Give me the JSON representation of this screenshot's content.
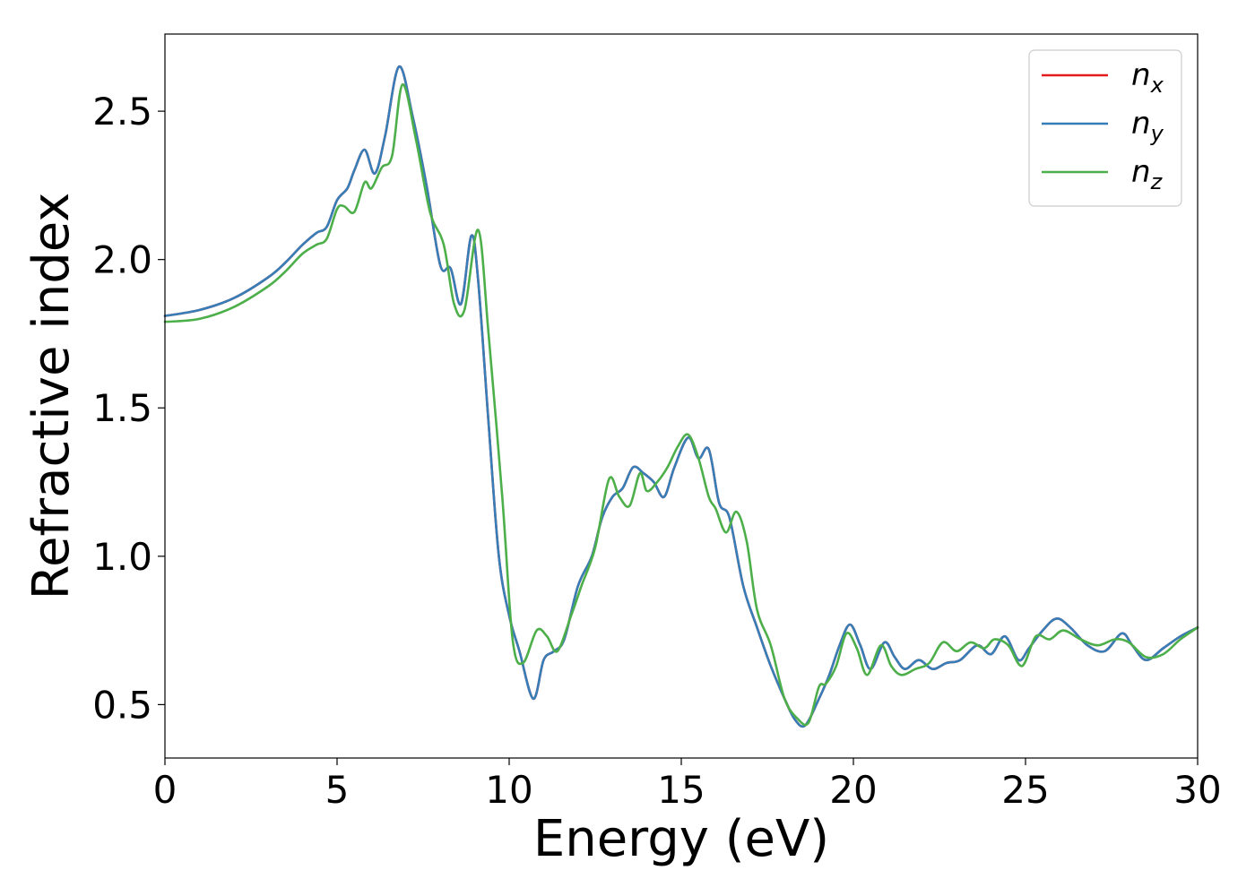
{
  "chart_data": {
    "type": "line",
    "xlabel": "Energy (eV)",
    "ylabel": "Refractive index",
    "xlim": [
      0,
      30
    ],
    "ylim": [
      0.32,
      2.76
    ],
    "xticks": [
      0,
      5,
      10,
      15,
      20,
      25,
      30
    ],
    "xtick_labels": [
      "0",
      "5",
      "10",
      "15",
      "20",
      "25",
      "30"
    ],
    "yticks": [
      0.5,
      1.0,
      1.5,
      2.0,
      2.5
    ],
    "ytick_labels": [
      "0.5",
      "1.0",
      "1.5",
      "2.0",
      "2.5"
    ],
    "grid": false,
    "legend_position": "top-right",
    "series": [
      {
        "name": "n_x",
        "legend_main": "n",
        "legend_sub": "x",
        "color": "#e41a1c",
        "x": [
          0,
          1,
          2,
          3,
          3.5,
          4,
          4.4,
          4.7,
          5.0,
          5.3,
          5.5,
          5.8,
          6.1,
          6.4,
          6.8,
          7.2,
          7.6,
          8.0,
          8.3,
          8.6,
          8.9,
          9.1,
          9.4,
          9.7,
          10.0,
          10.3,
          10.7,
          11.0,
          11.3,
          11.6,
          12.0,
          12.4,
          12.7,
          13.0,
          13.3,
          13.6,
          13.9,
          14.2,
          14.5,
          14.8,
          15.2,
          15.5,
          15.8,
          16.1,
          16.4,
          16.8,
          17.2,
          17.6,
          18.0,
          18.3,
          18.6,
          19.0,
          19.3,
          19.6,
          19.9,
          20.2,
          20.5,
          20.9,
          21.2,
          21.5,
          21.9,
          22.3,
          22.7,
          23.1,
          23.6,
          24.0,
          24.4,
          24.8,
          25.1,
          25.5,
          25.9,
          26.3,
          26.8,
          27.3,
          27.8,
          28.1,
          28.5,
          29.0,
          29.5,
          30.0
        ],
        "y": [
          1.81,
          1.83,
          1.87,
          1.94,
          1.99,
          2.05,
          2.09,
          2.11,
          2.2,
          2.24,
          2.3,
          2.37,
          2.29,
          2.42,
          2.65,
          2.48,
          2.25,
          1.98,
          1.97,
          1.85,
          2.08,
          1.93,
          1.45,
          1.0,
          0.8,
          0.68,
          0.52,
          0.65,
          0.68,
          0.72,
          0.9,
          1.0,
          1.13,
          1.2,
          1.23,
          1.3,
          1.28,
          1.25,
          1.2,
          1.3,
          1.4,
          1.33,
          1.36,
          1.18,
          1.13,
          0.9,
          0.76,
          0.63,
          0.52,
          0.45,
          0.43,
          0.52,
          0.6,
          0.7,
          0.77,
          0.7,
          0.62,
          0.71,
          0.66,
          0.62,
          0.65,
          0.62,
          0.64,
          0.65,
          0.7,
          0.67,
          0.73,
          0.65,
          0.69,
          0.75,
          0.79,
          0.76,
          0.7,
          0.68,
          0.74,
          0.7,
          0.65,
          0.69,
          0.73,
          0.76
        ]
      },
      {
        "name": "n_y",
        "legend_main": "n",
        "legend_sub": "y",
        "color": "#377eb8",
        "x": [
          0,
          1,
          2,
          3,
          3.5,
          4,
          4.4,
          4.7,
          5.0,
          5.3,
          5.5,
          5.8,
          6.1,
          6.4,
          6.8,
          7.2,
          7.6,
          8.0,
          8.3,
          8.6,
          8.9,
          9.1,
          9.4,
          9.7,
          10.0,
          10.3,
          10.7,
          11.0,
          11.3,
          11.6,
          12.0,
          12.4,
          12.7,
          13.0,
          13.3,
          13.6,
          13.9,
          14.2,
          14.5,
          14.8,
          15.2,
          15.5,
          15.8,
          16.1,
          16.4,
          16.8,
          17.2,
          17.6,
          18.0,
          18.3,
          18.6,
          19.0,
          19.3,
          19.6,
          19.9,
          20.2,
          20.5,
          20.9,
          21.2,
          21.5,
          21.9,
          22.3,
          22.7,
          23.1,
          23.6,
          24.0,
          24.4,
          24.8,
          25.1,
          25.5,
          25.9,
          26.3,
          26.8,
          27.3,
          27.8,
          28.1,
          28.5,
          29.0,
          29.5,
          30.0
        ],
        "y": [
          1.81,
          1.83,
          1.87,
          1.94,
          1.99,
          2.05,
          2.09,
          2.11,
          2.2,
          2.24,
          2.3,
          2.37,
          2.29,
          2.42,
          2.65,
          2.48,
          2.25,
          1.98,
          1.97,
          1.85,
          2.08,
          1.93,
          1.45,
          1.0,
          0.8,
          0.68,
          0.52,
          0.65,
          0.68,
          0.72,
          0.9,
          1.0,
          1.13,
          1.2,
          1.23,
          1.3,
          1.28,
          1.25,
          1.2,
          1.3,
          1.4,
          1.33,
          1.36,
          1.18,
          1.13,
          0.9,
          0.76,
          0.63,
          0.52,
          0.45,
          0.43,
          0.52,
          0.6,
          0.7,
          0.77,
          0.7,
          0.62,
          0.71,
          0.66,
          0.62,
          0.65,
          0.62,
          0.64,
          0.65,
          0.7,
          0.67,
          0.73,
          0.65,
          0.69,
          0.75,
          0.79,
          0.76,
          0.7,
          0.68,
          0.74,
          0.7,
          0.65,
          0.69,
          0.73,
          0.76
        ]
      },
      {
        "name": "n_z",
        "legend_main": "n",
        "legend_sub": "z",
        "color": "#4daf4a",
        "x": [
          0,
          1,
          2,
          3,
          3.5,
          4,
          4.4,
          4.7,
          5.0,
          5.2,
          5.5,
          5.8,
          6.0,
          6.3,
          6.6,
          6.9,
          7.3,
          7.7,
          8.1,
          8.4,
          8.7,
          9.1,
          9.4,
          9.8,
          10.1,
          10.4,
          10.8,
          11.1,
          11.4,
          11.8,
          12.1,
          12.5,
          12.9,
          13.2,
          13.5,
          13.8,
          14.0,
          14.3,
          14.6,
          14.9,
          15.2,
          15.5,
          15.8,
          16.0,
          16.3,
          16.6,
          16.9,
          17.2,
          17.6,
          18.0,
          18.4,
          18.7,
          19.0,
          19.2,
          19.5,
          19.8,
          20.1,
          20.4,
          20.8,
          21.1,
          21.4,
          21.8,
          22.2,
          22.6,
          23.0,
          23.4,
          23.8,
          24.1,
          24.5,
          24.9,
          25.3,
          25.7,
          26.1,
          26.6,
          27.1,
          27.6,
          28.0,
          28.5,
          29.0,
          29.5,
          30.0
        ],
        "y": [
          1.79,
          1.8,
          1.84,
          1.91,
          1.96,
          2.02,
          2.05,
          2.07,
          2.17,
          2.18,
          2.16,
          2.26,
          2.24,
          2.31,
          2.35,
          2.59,
          2.4,
          2.16,
          2.05,
          1.85,
          1.83,
          2.1,
          1.75,
          1.2,
          0.72,
          0.64,
          0.75,
          0.73,
          0.68,
          0.8,
          0.9,
          1.03,
          1.26,
          1.2,
          1.17,
          1.28,
          1.22,
          1.25,
          1.3,
          1.37,
          1.41,
          1.33,
          1.2,
          1.16,
          1.08,
          1.15,
          1.05,
          0.82,
          0.7,
          0.52,
          0.45,
          0.44,
          0.56,
          0.57,
          0.63,
          0.74,
          0.69,
          0.6,
          0.7,
          0.63,
          0.6,
          0.62,
          0.64,
          0.71,
          0.68,
          0.71,
          0.69,
          0.72,
          0.7,
          0.63,
          0.73,
          0.72,
          0.75,
          0.72,
          0.7,
          0.72,
          0.71,
          0.66,
          0.67,
          0.72,
          0.76
        ]
      }
    ]
  }
}
